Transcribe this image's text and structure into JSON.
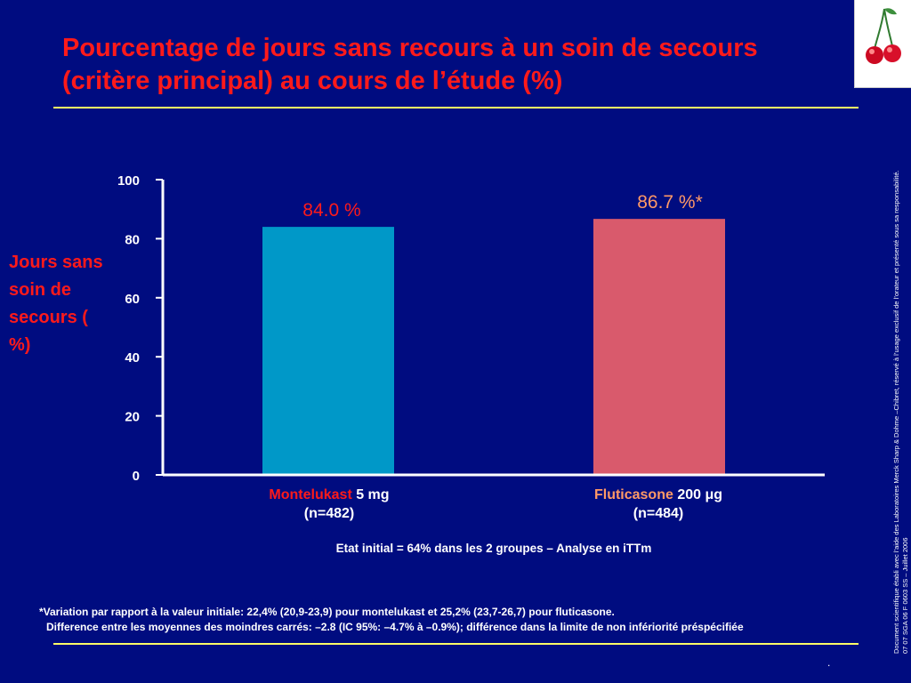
{
  "slide": {
    "title": "Pourcentage de jours sans recours à un soin de secours (critère principal) au cours de l’étude (%)",
    "side_note_line1": "Document scientifique établi avec l’aide des Laboratoires Merck Sharp & Dohme –Chibret, réservé à l’usage exclusif de l’orateur et présenté sous sa responsabilité.",
    "side_note_line2": "07 07 SGA 06 F 0603 SS – Juillet 2006",
    "dot": "."
  },
  "categories_display": [
    {
      "drug": "Montelukast",
      "dose": " 5 mg",
      "n": "(n=482)"
    },
    {
      "drug": "Fluticasone",
      "dose": " 200 μg",
      "n": "(n=484)"
    }
  ],
  "chart_data": {
    "type": "bar",
    "categories": [
      "Montelukast 5 mg (n=482)",
      "Fluticasone 200 μg (n=484)"
    ],
    "values": [
      84.0,
      86.7
    ],
    "data_labels": [
      "84.0 %",
      "86.7 %*"
    ],
    "ylabel": "Jours sans soin de secours ( %)",
    "ylim": [
      0,
      100
    ],
    "yticks": [
      0,
      20,
      40,
      60,
      80,
      100
    ],
    "grid": false,
    "colors": [
      "#0098c8",
      "#d95a6c"
    ],
    "label_colors": [
      "#ff1a1a",
      "#ff9966"
    ],
    "axis_color": "#ffffff"
  },
  "notes": {
    "baseline": "Etat initial = 64% dans les 2 groupes – Analyse en iTTm",
    "footnote_line1": "*Variation par rapport à la valeur initiale: 22,4% (20,9-23,9) pour montelukast et 25,2% (23,7-26,7) pour fluticasone.",
    "footnote_line2": "Difference entre les moyennes des moindres carrés: –2.8 (IC 95%: –4.7% à –0.9%); différence dans la limite de non infériorité préspécifiée"
  }
}
